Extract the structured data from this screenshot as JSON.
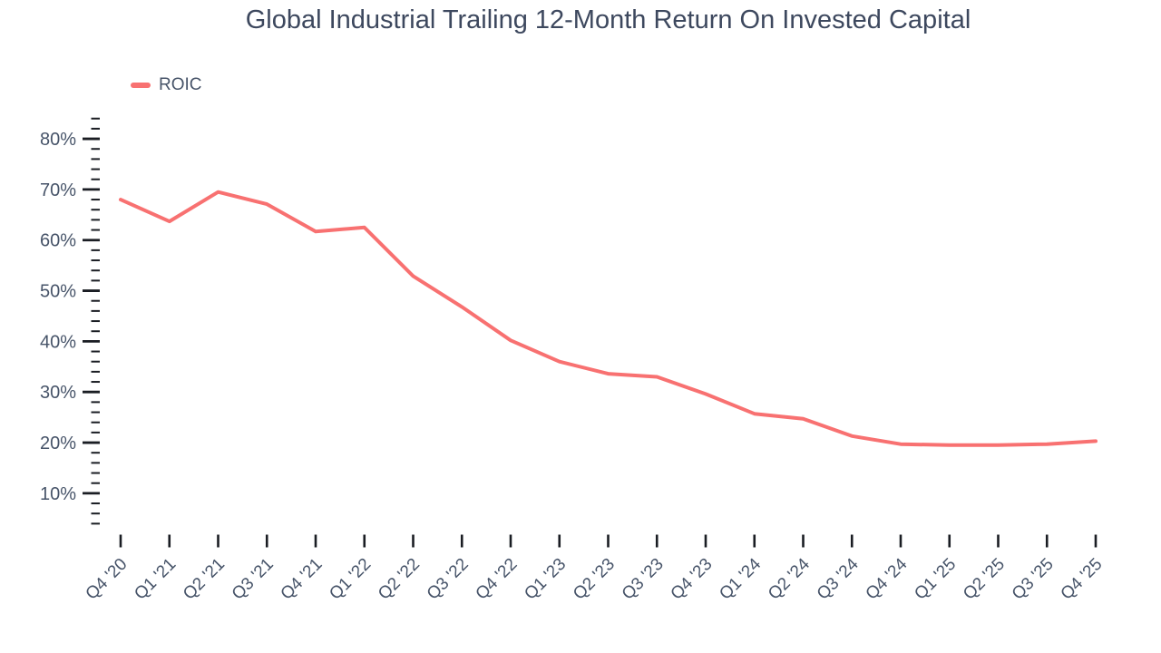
{
  "title": "Global Industrial Trailing 12-Month Return On Invested Capital",
  "legend": {
    "items": [
      {
        "label": "ROIC",
        "color": "#f87171"
      }
    ]
  },
  "colors": {
    "line": "#f87171",
    "title_text": "#3d485e",
    "tick_text": "#475469",
    "tick_mark": "#1a1d23",
    "background": "#ffffff"
  },
  "chart_data": {
    "type": "line",
    "title": "Global Industrial Trailing 12-Month Return On Invested Capital",
    "xlabel": "",
    "ylabel": "",
    "y_unit": "%",
    "categories": [
      "Q4 '20",
      "Q1 '21",
      "Q2 '21",
      "Q3 '21",
      "Q4 '21",
      "Q1 '22",
      "Q2 '22",
      "Q3 '22",
      "Q4 '22",
      "Q1 '23",
      "Q2 '23",
      "Q3 '23",
      "Q4 '23",
      "Q1 '24",
      "Q2 '24",
      "Q3 '24",
      "Q4 '24",
      "Q1 '25",
      "Q2 '25",
      "Q3 '25",
      "Q4 '25"
    ],
    "series": [
      {
        "name": "ROIC",
        "color": "#f87171",
        "values": [
          68.0,
          63.7,
          69.5,
          67.1,
          61.7,
          62.5,
          52.9,
          46.8,
          40.2,
          36.0,
          33.6,
          33.0,
          29.6,
          25.7,
          24.7,
          21.3,
          19.7,
          19.5,
          19.5,
          19.7,
          20.3
        ]
      }
    ],
    "ylim": [
      0,
      86
    ],
    "y_major_ticks": [
      10,
      20,
      30,
      40,
      50,
      60,
      70,
      80
    ],
    "y_minor_tick_step": 2,
    "y_minor_tick_range": [
      4,
      84
    ],
    "grid": false,
    "legend_position": "top-left",
    "x_label_rotation": -45
  }
}
